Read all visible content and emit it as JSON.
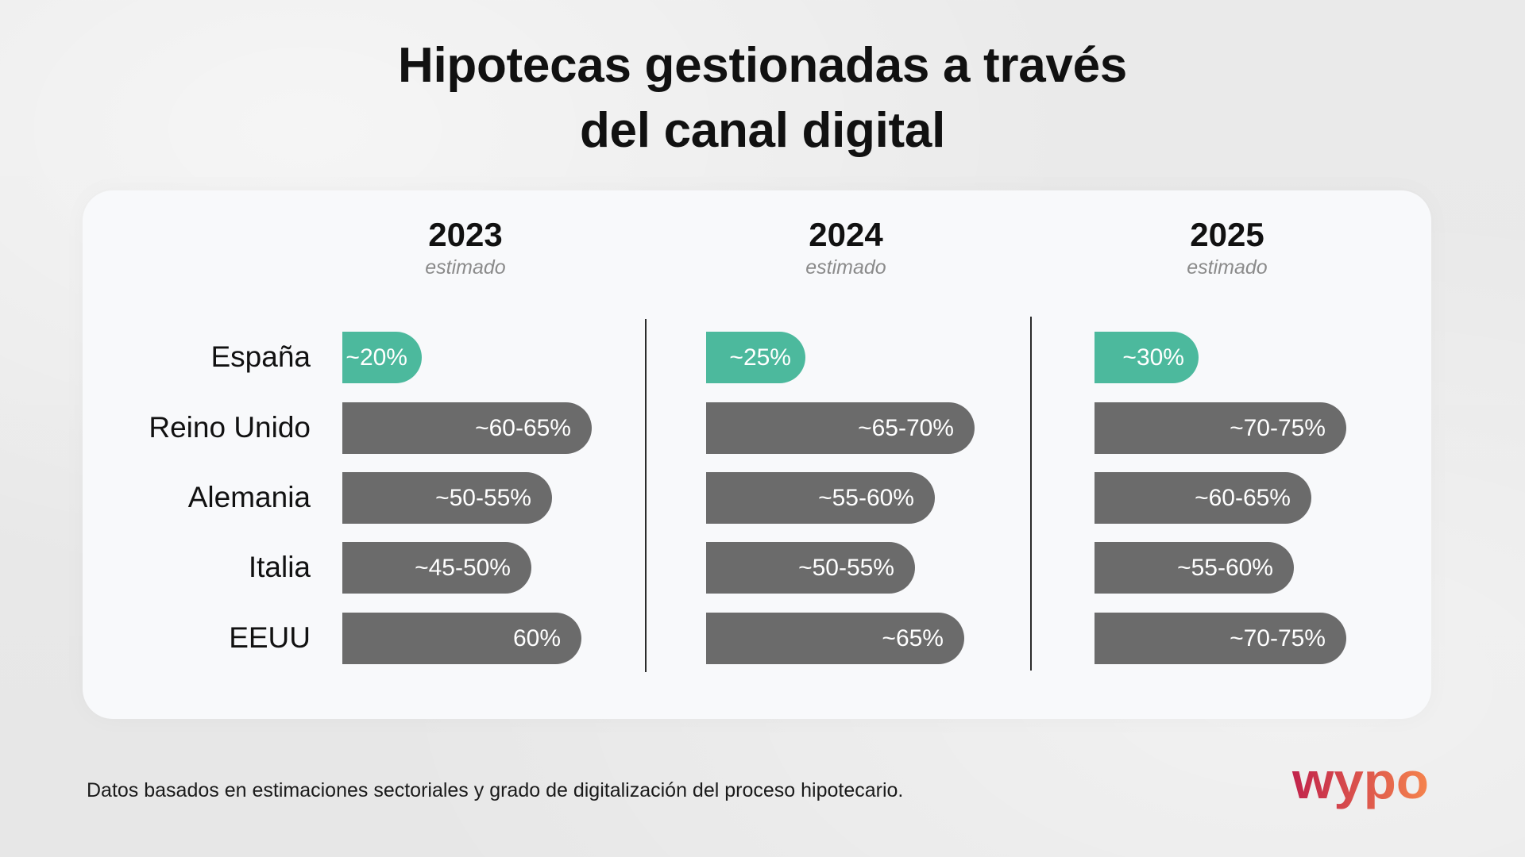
{
  "colors": {
    "background": "#eeeeee",
    "card": "#f8f9fb",
    "text": "#111111",
    "subtitle": "#8b8b8b",
    "highlight_bar": "#4cb99d",
    "bar": "#6b6b6b"
  },
  "chart_data": {
    "type": "bar",
    "title_lines": [
      "Hipotecas gestionadas a través",
      "del canal digital"
    ],
    "categories": [
      "España",
      "Reino Unido",
      "Alemania",
      "Italia",
      "EEUU"
    ],
    "bar_colors": [
      "#4cb99d",
      "#6b6b6b",
      "#6b6b6b",
      "#6b6b6b",
      "#6b6b6b"
    ],
    "panels": [
      {
        "year": "2023",
        "subtitle": "estimado",
        "labels": [
          "~20%",
          "~60-65%",
          "~50-55%",
          "~45-50%",
          "60%"
        ],
        "ranges": [
          [
            20,
            20
          ],
          [
            60,
            65
          ],
          [
            50,
            55
          ],
          [
            45,
            50
          ],
          [
            60,
            60
          ]
        ]
      },
      {
        "year": "2024",
        "subtitle": "estimado",
        "labels": [
          "~25%",
          "~65-70%",
          "~55-60%",
          "~50-55%",
          "~65%"
        ],
        "ranges": [
          [
            25,
            25
          ],
          [
            65,
            70
          ],
          [
            55,
            60
          ],
          [
            50,
            55
          ],
          [
            65,
            65
          ]
        ]
      },
      {
        "year": "2025",
        "subtitle": "estimado",
        "labels": [
          "~30%",
          "~70-75%",
          "~60-65%",
          "~55-60%",
          "~70-75%"
        ],
        "ranges": [
          [
            30,
            30
          ],
          [
            70,
            75
          ],
          [
            60,
            65
          ],
          [
            55,
            60
          ],
          [
            70,
            75
          ]
        ]
      }
    ],
    "grid": false,
    "legend": "none"
  },
  "footnote": "Datos basados en estimaciones sectoriales y grado de digitalización del proceso hipotecario.",
  "logo": {
    "text": "wypo",
    "gradient": [
      "#c1234c",
      "#f5844d"
    ]
  }
}
